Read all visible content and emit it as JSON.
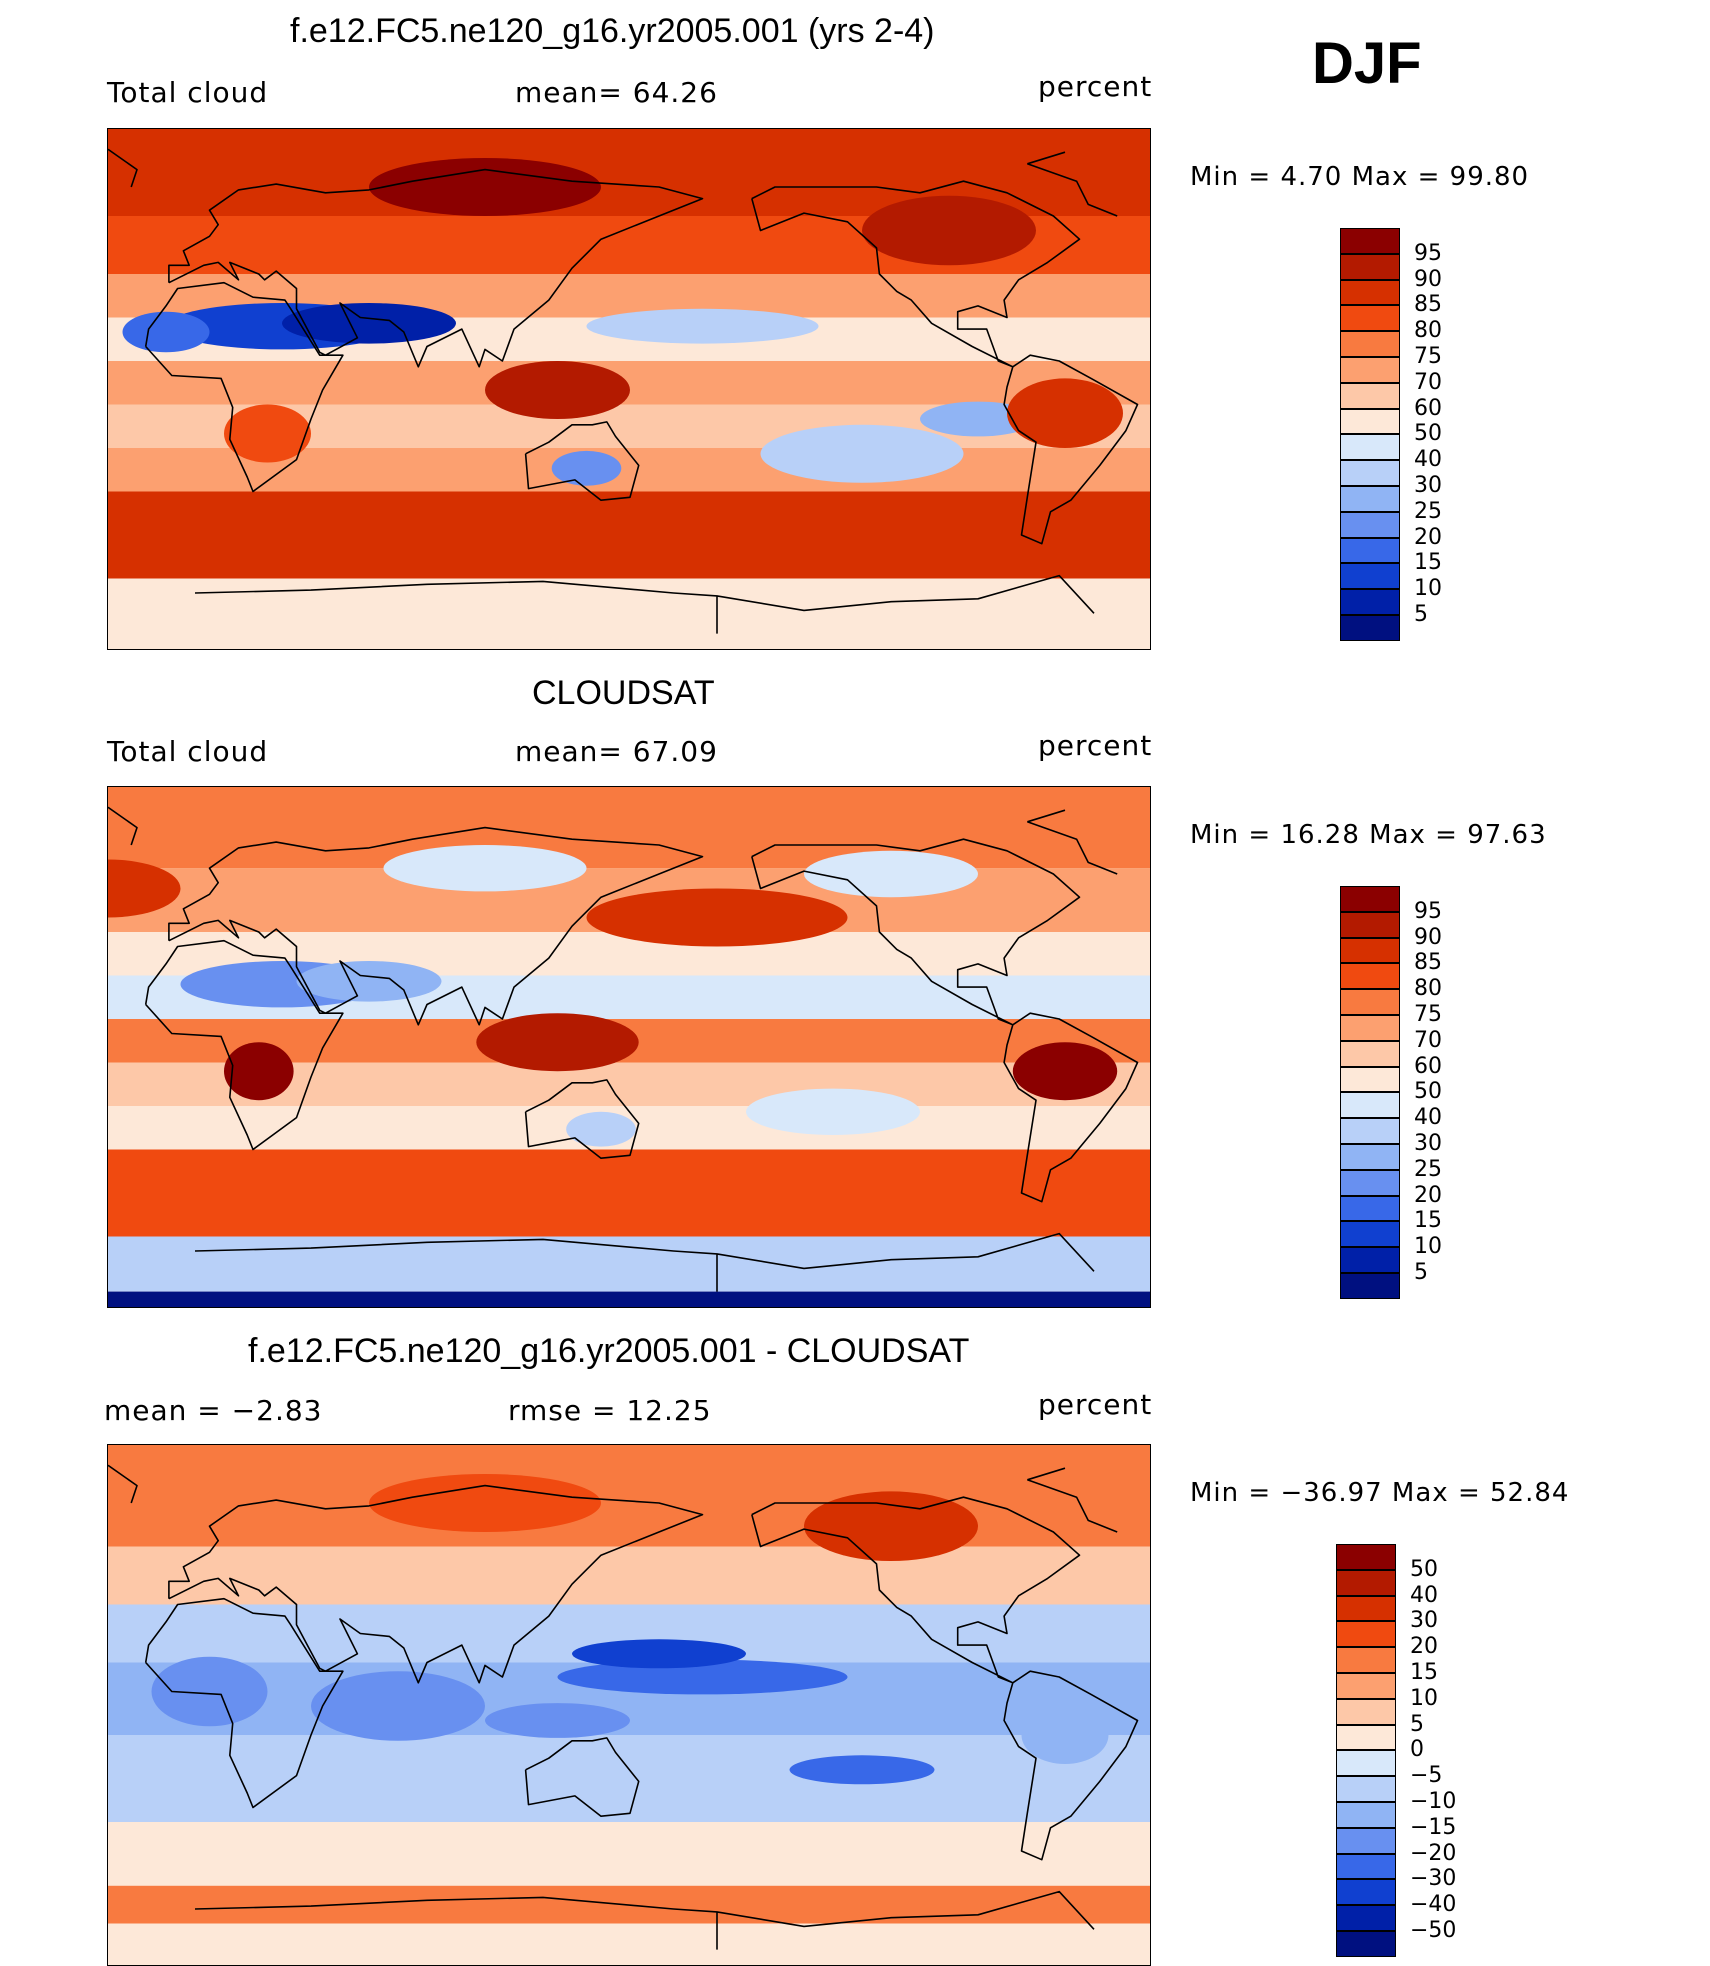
{
  "season": "DJF",
  "panels": [
    {
      "title": "f.e12.FC5.ne120_g16.yr2005.001 (yrs 2-4)",
      "left_label": "Total cloud",
      "center_label": "mean=   64.26",
      "right_label": "percent",
      "minmax": "Min  =    4.70  Max  =   99.80",
      "kind": "model"
    },
    {
      "title": "CLOUDSAT",
      "left_label": "Total cloud",
      "center_label": "mean=   67.09",
      "right_label": "percent",
      "minmax": "Min  =   16.28  Max  =   97.63",
      "kind": "obs"
    },
    {
      "title": "f.e12.FC5.ne120_g16.yr2005.001 - CLOUDSAT",
      "left_label": "mean  =   −2.83",
      "center_label": "rmse  =    12.25",
      "right_label": "percent",
      "minmax": "Min  = −36.97  Max  =   52.84",
      "kind": "diff"
    }
  ],
  "colorbars": {
    "abs": {
      "labels": [
        "95",
        "90",
        "85",
        "80",
        "75",
        "70",
        "60",
        "50",
        "40",
        "30",
        "25",
        "20",
        "15",
        "10",
        "5"
      ],
      "colors": [
        "#8b0000",
        "#b31a00",
        "#d63000",
        "#f04a10",
        "#f87a40",
        "#fca070",
        "#fdc8a8",
        "#fde8d8",
        "#d8e8fa",
        "#b8d0f8",
        "#90b4f4",
        "#6890f0",
        "#3868e8",
        "#1040d0",
        "#0020a8",
        "#001080"
      ]
    },
    "diff": {
      "labels": [
        "50",
        "40",
        "30",
        "20",
        "15",
        "10",
        "5",
        "0",
        "−5",
        "−10",
        "−15",
        "−20",
        "−30",
        "−40",
        "−50"
      ],
      "colors": [
        "#8b0000",
        "#b31a00",
        "#d63000",
        "#f04a10",
        "#f87a40",
        "#fca070",
        "#fdc8a8",
        "#fde8d8",
        "#d8e8fa",
        "#b8d0f8",
        "#90b4f4",
        "#6890f0",
        "#3868e8",
        "#1040d0",
        "#0020a8",
        "#001080"
      ]
    }
  }
}
